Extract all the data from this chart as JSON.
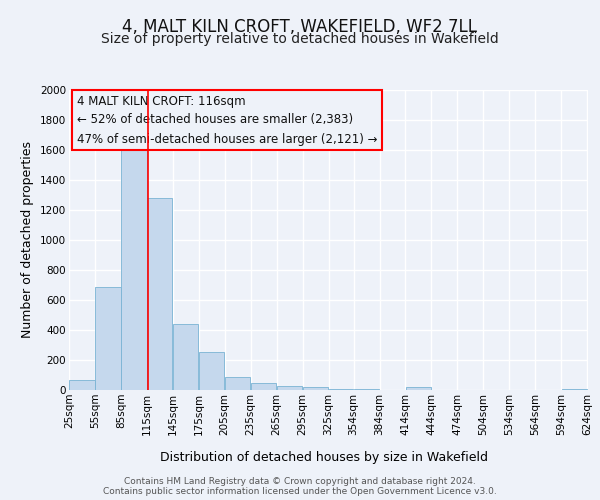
{
  "title": "4, MALT KILN CROFT, WAKEFIELD, WF2 7LL",
  "subtitle": "Size of property relative to detached houses in Wakefield",
  "xlabel": "Distribution of detached houses by size in Wakefield",
  "ylabel": "Number of detached properties",
  "bar_color": "#c5d8ed",
  "bar_edge_color": "#7ab3d4",
  "bar_left_edges": [
    25,
    55,
    85,
    115,
    145,
    175,
    205,
    235,
    265,
    295,
    325,
    354,
    384,
    414,
    444,
    474,
    504,
    534,
    564,
    594
  ],
  "bar_widths": [
    30,
    30,
    30,
    30,
    30,
    30,
    30,
    30,
    30,
    30,
    29,
    30,
    30,
    30,
    30,
    30,
    30,
    30,
    30,
    30
  ],
  "bar_heights": [
    65,
    690,
    1640,
    1280,
    440,
    255,
    90,
    50,
    30,
    20,
    5,
    5,
    0,
    18,
    0,
    0,
    0,
    0,
    0,
    5
  ],
  "tick_labels": [
    "25sqm",
    "55sqm",
    "85sqm",
    "115sqm",
    "145sqm",
    "175sqm",
    "205sqm",
    "235sqm",
    "265sqm",
    "295sqm",
    "325sqm",
    "354sqm",
    "384sqm",
    "414sqm",
    "444sqm",
    "474sqm",
    "504sqm",
    "534sqm",
    "564sqm",
    "594sqm",
    "624sqm"
  ],
  "ylim": [
    0,
    2000
  ],
  "yticks": [
    0,
    200,
    400,
    600,
    800,
    1000,
    1200,
    1400,
    1600,
    1800,
    2000
  ],
  "red_line_x": 116,
  "annotation_line1": "4 MALT KILN CROFT: 116sqm",
  "annotation_line2": "← 52% of detached houses are smaller (2,383)",
  "annotation_line3": "47% of semi-detached houses are larger (2,121) →",
  "footer_line1": "Contains HM Land Registry data © Crown copyright and database right 2024.",
  "footer_line2": "Contains public sector information licensed under the Open Government Licence v3.0.",
  "bg_color": "#eef2f9",
  "grid_color": "#ffffff",
  "title_fontsize": 12,
  "subtitle_fontsize": 10,
  "axis_label_fontsize": 9,
  "tick_fontsize": 7.5,
  "footer_fontsize": 6.5,
  "annotation_fontsize": 8.5
}
